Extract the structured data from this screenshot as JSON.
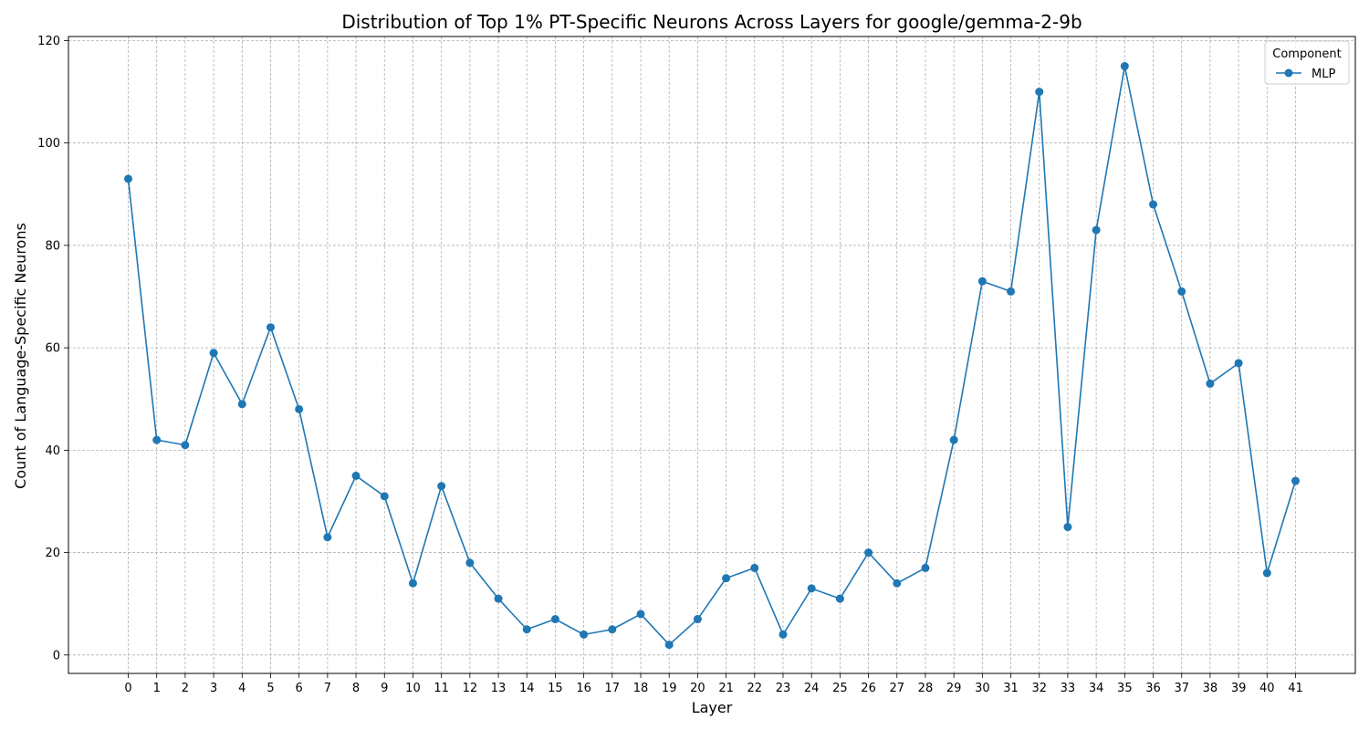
{
  "chart_data": {
    "type": "line",
    "title": "Distribution of Top 1% PT-Specific Neurons Across Layers for google/gemma-2-9b",
    "xlabel": "Layer",
    "ylabel": "Count of Language-Specific Neurons",
    "x": [
      0,
      1,
      2,
      3,
      4,
      5,
      6,
      7,
      8,
      9,
      10,
      11,
      12,
      13,
      14,
      15,
      16,
      17,
      18,
      19,
      20,
      21,
      22,
      23,
      24,
      25,
      26,
      27,
      28,
      29,
      30,
      31,
      32,
      33,
      34,
      35,
      36,
      37,
      38,
      39,
      40,
      41
    ],
    "xlim": [
      -2.1,
      43.1
    ],
    "ylim": [
      -3.6,
      120.8
    ],
    "yticks": [
      0,
      20,
      40,
      60,
      80,
      100,
      120
    ],
    "grid": true,
    "legend": {
      "title": "Component",
      "placement": "top-right"
    },
    "series": [
      {
        "name": "MLP",
        "color": "#1f77b4",
        "marker": "circle",
        "values": [
          93,
          42,
          41,
          59,
          49,
          64,
          48,
          23,
          35,
          31,
          14,
          33,
          18,
          11,
          5,
          7,
          4,
          5,
          8,
          2,
          7,
          15,
          17,
          4,
          13,
          11,
          20,
          14,
          17,
          42,
          73,
          71,
          110,
          25,
          83,
          115,
          88,
          71,
          53,
          57,
          16,
          34
        ]
      }
    ]
  }
}
